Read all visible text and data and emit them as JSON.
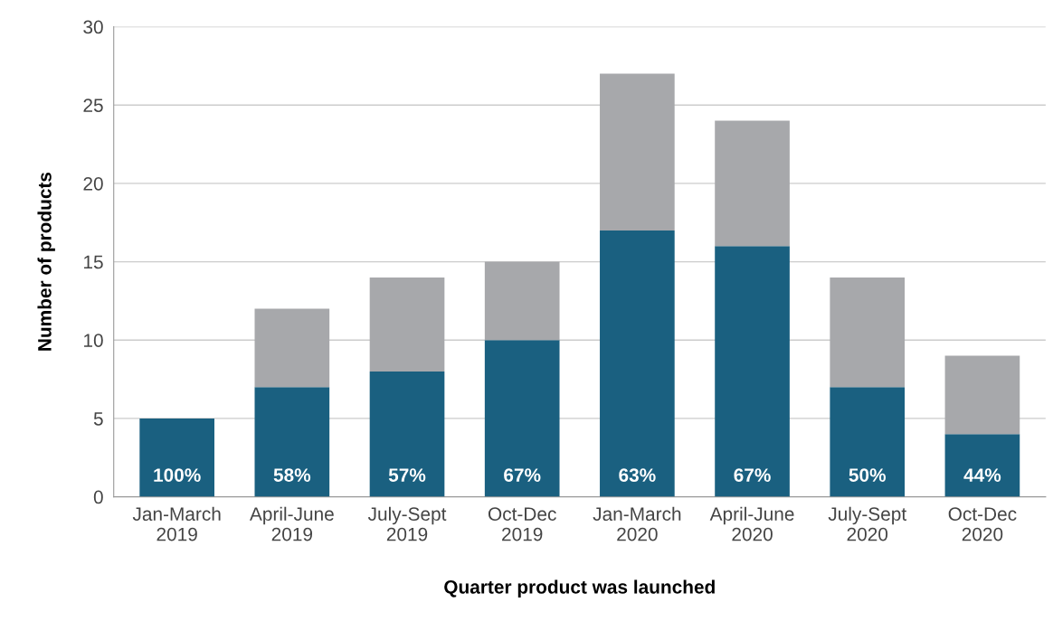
{
  "chart_data": {
    "type": "bar",
    "stacked": true,
    "xlabel": "Quarter product was launched",
    "ylabel": "Number of products",
    "categories": [
      "Jan-March\n2019",
      "April-June\n2019",
      "July-Sept\n2019",
      "Oct-Dec\n2019",
      "Jan-March\n2020",
      "April-June\n2020",
      "July-Sept\n2020",
      "Oct-Dec\n2020"
    ],
    "series": [
      {
        "color": "#1a6080",
        "values": [
          5,
          7,
          8,
          10,
          17,
          16,
          7,
          4
        ]
      },
      {
        "color": "#a7a8ab",
        "values": [
          0,
          5,
          6,
          5,
          10,
          8,
          7,
          5
        ]
      }
    ],
    "annotations": [
      "100%",
      "58%",
      "57%",
      "67%",
      "63%",
      "67%",
      "50%",
      "44%"
    ],
    "ylim": [
      0,
      30
    ],
    "yticks": [
      0,
      5,
      10,
      15,
      20,
      25,
      30
    ],
    "grid": "y"
  }
}
